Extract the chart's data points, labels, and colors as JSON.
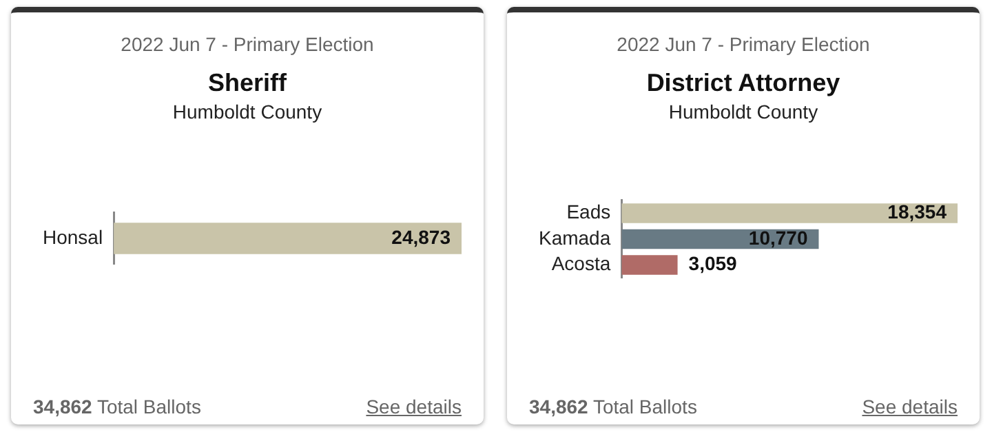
{
  "chart_data": [
    {
      "type": "bar",
      "orientation": "horizontal",
      "title": "Sheriff",
      "subtitle": "Humboldt County",
      "categories": [
        "Honsal"
      ],
      "values": [
        24873
      ],
      "colors": [
        "#c9c4a9"
      ],
      "value_labels": [
        "24,873"
      ],
      "tick_labels": "y",
      "annotations": [
        "2022 Jun 7 - Primary Election",
        "34,862 Total Ballots",
        "See details"
      ]
    },
    {
      "type": "bar",
      "orientation": "horizontal",
      "title": "District Attorney",
      "subtitle": "Humboldt County",
      "categories": [
        "Eads",
        "Kamada",
        "Acosta"
      ],
      "values": [
        18354,
        10770,
        3059
      ],
      "colors": [
        "#c9c4a9",
        "#687a84",
        "#b06b67"
      ],
      "value_labels": [
        "18,354",
        "10,770",
        "3,059"
      ],
      "tick_labels": "y",
      "annotations": [
        "2022 Jun 7 - Primary Election",
        "34,862 Total Ballots",
        "See details"
      ]
    }
  ]
}
